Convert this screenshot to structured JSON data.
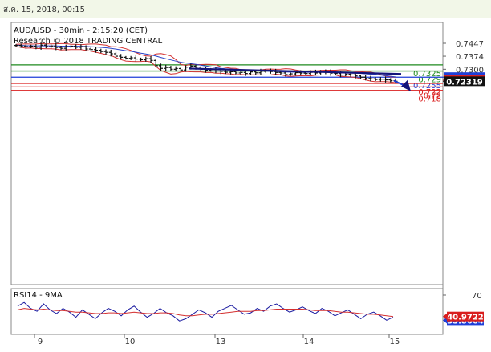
{
  "timestamp": "ส.ค. 15, 2018, 00:15",
  "header": {
    "line1": "AUD/USD - 30min - 2:15:20 (CET)",
    "line2": "Research © 2018 TRADING CENTRAL"
  },
  "rsi_label": "RSI14 - 9MA",
  "colors": {
    "support_green": "#1e8a1e",
    "pivot_blue": "#1f3fd8",
    "resistance_red": "#d91e1e",
    "trend_navy": "#14147a",
    "bollinger": "#d43030",
    "ma_blue": "#2b45c8",
    "price": "#111111",
    "rsi": "#1a1aa0",
    "rsi_ma": "#d43030"
  },
  "chart_data": [
    {
      "type": "line",
      "subtype": "candlestick-with-levels",
      "title": "AUD/USD - 30min - 2:15:20 (CET)",
      "x_tick_labels": [
        "9",
        "10",
        "13",
        "14",
        "15"
      ],
      "y_tick_labels": [
        "0.7447",
        "0.7374",
        "0.7300"
      ],
      "ylim": [
        0.7172,
        0.7467
      ],
      "grid": false,
      "horizontal_levels": [
        {
          "label": "0.7325",
          "value": 0.7325,
          "color": "green"
        },
        {
          "label": "0.729",
          "value": 0.729,
          "color": "green"
        },
        {
          "label": "0.7255",
          "value": 0.7255,
          "color": "blue"
        },
        {
          "label": "0.722",
          "value": 0.722,
          "color": "red"
        },
        {
          "label": "0.72",
          "value": 0.72,
          "color": "red"
        },
        {
          "label": "0.718",
          "value": 0.718,
          "color": "red"
        }
      ],
      "price_boxes": [
        {
          "label": "0.72552",
          "value": 0.72552,
          "color": "blue"
        },
        {
          "label": "0.72378",
          "value": 0.72378,
          "color": "red"
        },
        {
          "label": "0.72319",
          "value": 0.72319,
          "color": "black"
        }
      ],
      "trendline": {
        "from": [
          0.7304,
          0.7304
        ],
        "to": [
          0.7273,
          0.7273
        ]
      },
      "close_path": [
        0.7435,
        0.7432,
        0.7428,
        0.7431,
        0.7425,
        0.7437,
        0.7428,
        0.7432,
        0.7424,
        0.7419,
        0.7427,
        0.7431,
        0.7425,
        0.7428,
        0.7415,
        0.7412,
        0.7408,
        0.7401,
        0.7396,
        0.7388,
        0.7374,
        0.7368,
        0.7362,
        0.7365,
        0.7358,
        0.7354,
        0.736,
        0.735,
        0.732,
        0.7305,
        0.731,
        0.73,
        0.7304,
        0.7296,
        0.7312,
        0.7318,
        0.7306,
        0.73,
        0.7295,
        0.7298,
        0.729,
        0.7288,
        0.7283,
        0.7286,
        0.7279,
        0.7282,
        0.7276,
        0.7285,
        0.728,
        0.7288,
        0.7292,
        0.7287,
        0.7282,
        0.7279,
        0.727,
        0.7274,
        0.7281,
        0.7278,
        0.7276,
        0.7283,
        0.7279,
        0.7287,
        0.7284,
        0.7278,
        0.7276,
        0.7267,
        0.7272,
        0.7268,
        0.7262,
        0.7255,
        0.7248,
        0.7246,
        0.7242,
        0.7244,
        0.724,
        0.7235,
        0.7232
      ]
    },
    {
      "type": "line",
      "title": "RSI14 - 9MA",
      "y_tick_labels": [
        "70"
      ],
      "series": [
        {
          "name": "RSI14",
          "current": 35.8664,
          "values": [
            55,
            60,
            52,
            48,
            58,
            50,
            45,
            52,
            47,
            40,
            50,
            44,
            38,
            46,
            52,
            48,
            42,
            50,
            55,
            47,
            40,
            45,
            52,
            46,
            42,
            35,
            38,
            44,
            50,
            46,
            40,
            48,
            52,
            56,
            50,
            44,
            46,
            52,
            48,
            55,
            58,
            52,
            47,
            50,
            54,
            49,
            45,
            52,
            48,
            42,
            46,
            50,
            44,
            38,
            44,
            47,
            42,
            36,
            40
          ]
        },
        {
          "name": "9MA",
          "current": 40.9722,
          "values": [
            50,
            52,
            51,
            50,
            51,
            50,
            49,
            49,
            48,
            47,
            47,
            46,
            45,
            45,
            46,
            46,
            45,
            46,
            47,
            46,
            45,
            45,
            46,
            46,
            45,
            43,
            42,
            42,
            43,
            44,
            44,
            45,
            46,
            47,
            48,
            48,
            48,
            49,
            49,
            50,
            51,
            51,
            51,
            51,
            51,
            50,
            49,
            49,
            49,
            48,
            47,
            47,
            46,
            45,
            44,
            44,
            43,
            42,
            41
          ]
        }
      ]
    }
  ]
}
